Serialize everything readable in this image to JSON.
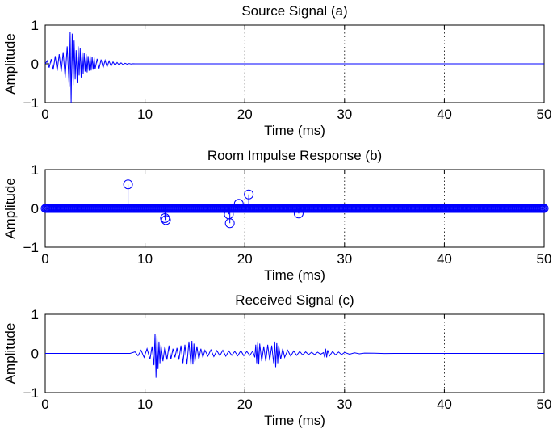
{
  "chart_data": [
    {
      "type": "line",
      "title": "Source Signal (a)",
      "xlabel": "Time (ms)",
      "ylabel": "Amplitude",
      "xlim": [
        0,
        50
      ],
      "ylim": [
        -1,
        1
      ],
      "xticks": [
        0,
        10,
        20,
        30,
        40,
        50
      ],
      "yticks": [
        -1,
        0,
        1
      ],
      "grid": "vertical dotted",
      "color": "#0000ff",
      "series": [
        {
          "x": [
            0,
            0.2,
            0.4,
            0.6,
            0.8,
            1.0,
            1.2,
            1.4,
            1.6,
            1.8,
            2.0,
            2.2,
            2.4,
            2.5,
            2.6,
            2.7,
            2.8,
            2.9,
            3.0,
            3.1,
            3.2,
            3.3,
            3.4,
            3.5,
            3.6,
            3.7,
            3.8,
            3.9,
            4.0,
            4.1,
            4.2,
            4.3,
            4.4,
            4.5,
            4.6,
            4.7,
            4.8,
            4.9,
            5.0,
            5.2,
            5.4,
            5.6,
            5.8,
            6.0,
            6.2,
            6.4,
            6.6,
            6.8,
            7.0,
            7.2,
            7.4,
            7.6,
            7.8,
            8.0,
            8.2,
            8.4,
            8.6,
            8.8,
            9.0,
            10,
            20,
            30,
            40,
            50
          ],
          "y": [
            0,
            0.08,
            -0.1,
            0.12,
            -0.15,
            0.2,
            -0.18,
            0.25,
            -0.2,
            0.3,
            -0.35,
            0.45,
            -0.6,
            0.82,
            -1.0,
            0.78,
            -0.55,
            0.6,
            -0.4,
            0.35,
            -0.5,
            0.45,
            -0.3,
            0.4,
            -0.35,
            0.3,
            -0.25,
            0.28,
            -0.2,
            0.25,
            -0.22,
            0.2,
            -0.18,
            0.2,
            -0.17,
            0.18,
            -0.15,
            0.16,
            -0.14,
            0.13,
            -0.12,
            0.11,
            -0.1,
            0.09,
            -0.08,
            0.07,
            -0.06,
            0.05,
            -0.04,
            0.035,
            -0.03,
            0.025,
            -0.02,
            0.015,
            -0.01,
            0.008,
            -0.005,
            0.003,
            0,
            0,
            0,
            0,
            0,
            0
          ]
        }
      ]
    },
    {
      "type": "scatter",
      "title": "Room Impulse Response (b)",
      "xlabel": "Time (ms)",
      "ylabel": "Amplitude",
      "xlim": [
        0,
        50
      ],
      "ylim": [
        -1,
        1
      ],
      "xticks": [
        0,
        10,
        20,
        30,
        40,
        50
      ],
      "yticks": [
        -1,
        0,
        1
      ],
      "grid": "vertical dotted",
      "color": "#0000ff",
      "markers": "stem with open circles, dense zero-valued samples along baseline",
      "series": [
        {
          "x": [
            8.3,
            12.0,
            12.1,
            18.4,
            18.5,
            19.4,
            20.4,
            25.4
          ],
          "y": [
            0.62,
            -0.25,
            -0.3,
            -0.15,
            -0.38,
            0.12,
            0.36,
            -0.13
          ]
        }
      ]
    },
    {
      "type": "line",
      "title": "Received Signal (c)",
      "xlabel": "Time (ms)",
      "ylabel": "Amplitude",
      "xlim": [
        0,
        50
      ],
      "ylim": [
        -1,
        1
      ],
      "xticks": [
        0,
        10,
        20,
        30,
        40,
        50
      ],
      "yticks": [
        -1,
        0,
        1
      ],
      "grid": "vertical dotted",
      "color": "#0000ff",
      "series": [
        {
          "x": [
            0,
            8.5,
            9.0,
            9.3,
            9.6,
            9.9,
            10.2,
            10.5,
            10.7,
            10.9,
            11.0,
            11.1,
            11.2,
            11.3,
            11.4,
            11.5,
            11.6,
            11.8,
            12.0,
            12.2,
            12.4,
            12.6,
            12.8,
            13.0,
            13.2,
            13.4,
            13.6,
            13.8,
            14.0,
            14.2,
            14.4,
            14.6,
            14.7,
            14.8,
            14.9,
            15.0,
            15.2,
            15.4,
            15.6,
            15.8,
            16.0,
            16.3,
            16.6,
            16.9,
            17.2,
            17.5,
            17.8,
            18.1,
            18.4,
            18.7,
            19.0,
            19.3,
            19.6,
            19.9,
            20.2,
            20.5,
            20.8,
            21.0,
            21.1,
            21.2,
            21.3,
            21.4,
            21.5,
            21.7,
            21.9,
            22.1,
            22.3,
            22.5,
            22.7,
            22.9,
            23.0,
            23.1,
            23.2,
            23.3,
            23.4,
            23.6,
            23.8,
            24.0,
            24.3,
            24.6,
            24.9,
            25.2,
            25.5,
            25.8,
            26.1,
            26.4,
            26.7,
            27.0,
            27.3,
            27.6,
            27.9,
            28.0,
            28.1,
            28.2,
            28.3,
            28.5,
            28.8,
            29.1,
            29.4,
            29.7,
            30.0,
            30.5,
            31.0,
            31.5,
            32.0,
            33.0,
            34.0,
            35.0,
            40.0,
            50.0
          ],
          "y": [
            0,
            0,
            0.04,
            -0.06,
            0.08,
            -0.1,
            0.12,
            -0.15,
            0.18,
            -0.3,
            0.5,
            -0.62,
            0.45,
            -0.4,
            0.3,
            -0.25,
            0.22,
            -0.2,
            0.18,
            -0.16,
            0.2,
            -0.15,
            0.12,
            -0.1,
            0.14,
            -0.16,
            0.2,
            -0.25,
            0.22,
            -0.28,
            0.3,
            -0.3,
            0.32,
            -0.28,
            0.25,
            -0.22,
            0.18,
            -0.15,
            0.12,
            -0.1,
            0.08,
            -0.07,
            0.09,
            -0.08,
            0.07,
            -0.06,
            0.08,
            -0.07,
            0.06,
            -0.05,
            0.05,
            -0.06,
            0.07,
            -0.06,
            0.05,
            -0.05,
            0.06,
            -0.1,
            0.22,
            -0.25,
            0.3,
            -0.28,
            0.25,
            -0.2,
            0.18,
            -0.2,
            0.22,
            -0.18,
            0.2,
            -0.25,
            0.3,
            -0.35,
            0.28,
            -0.25,
            0.2,
            -0.15,
            0.12,
            -0.1,
            0.08,
            -0.07,
            0.06,
            -0.05,
            0.05,
            -0.04,
            0.04,
            -0.03,
            0.03,
            -0.03,
            0.03,
            -0.02,
            0.02,
            -0.1,
            0.12,
            -0.1,
            0.08,
            -0.06,
            0.05,
            -0.04,
            0.035,
            -0.03,
            0.025,
            -0.02,
            0.015,
            -0.01,
            0.008,
            0.004,
            -0.003,
            0.001,
            0,
            0
          ]
        }
      ]
    }
  ]
}
